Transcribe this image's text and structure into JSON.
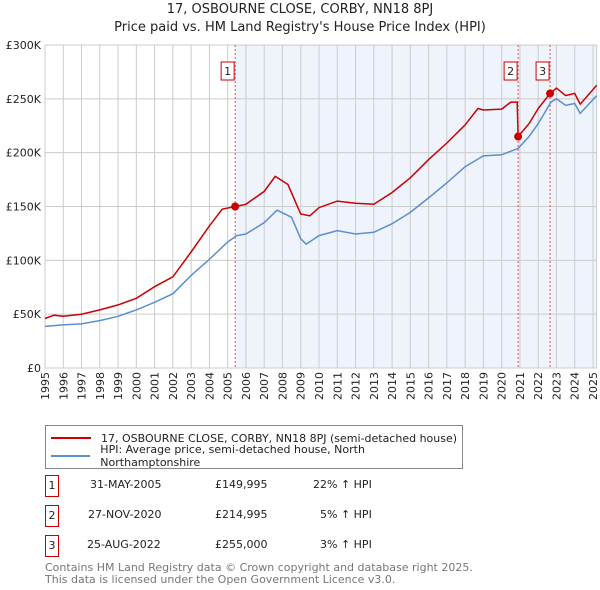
{
  "title": "17, OSBOURNE CLOSE, CORBY, NN18 8PJ",
  "subtitle": "Price paid vs. HM Land Registry's House Price Index (HPI)",
  "legend": {
    "red": "17, OSBOURNE CLOSE, CORBY, NN18 8PJ (semi-detached house)",
    "blue": "HPI: Average price, semi-detached house, North Northamptonshire"
  },
  "sales": [
    {
      "n": "1",
      "date": "31-MAY-2005",
      "price": "£149,995",
      "hpi": "22% ↑ HPI"
    },
    {
      "n": "2",
      "date": "27-NOV-2020",
      "price": "£214,995",
      "hpi": "5% ↑ HPI"
    },
    {
      "n": "3",
      "date": "25-AUG-2022",
      "price": "£255,000",
      "hpi": "3% ↑ HPI"
    }
  ],
  "footer": {
    "line1": "Contains HM Land Registry data © Crown copyright and database right 2025.",
    "line2": "This data is licensed under the Open Government Licence v3.0."
  },
  "colors": {
    "red": "#cc0000",
    "blue": "#5b8fd0",
    "shade": "#eef3fc"
  },
  "chart_data": {
    "type": "line",
    "xlim": [
      1995,
      2025.2
    ],
    "ylim": [
      0,
      300000
    ],
    "yticks": [
      0,
      50000,
      100000,
      150000,
      200000,
      250000,
      300000
    ],
    "ytick_labels": [
      "£0",
      "£50K",
      "£100K",
      "£150K",
      "£200K",
      "£250K",
      "£300K"
    ],
    "xticks": [
      1995,
      1996,
      1997,
      1998,
      1999,
      2000,
      2001,
      2002,
      2003,
      2004,
      2005,
      2006,
      2007,
      2008,
      2009,
      2010,
      2011,
      2012,
      2013,
      2014,
      2015,
      2016,
      2017,
      2018,
      2019,
      2020,
      2021,
      2022,
      2023,
      2024,
      2025
    ],
    "shaded_from": 2005.41,
    "series": [
      {
        "name": "red",
        "x": [
          1995,
          1995.5,
          1996,
          1997,
          1998,
          1999,
          2000,
          2001,
          2002,
          2003,
          2004,
          2004.7,
          2005.41,
          2006,
          2007,
          2007.6,
          2008.3,
          2009,
          2009.5,
          2010,
          2011,
          2012,
          2013,
          2014,
          2015,
          2016,
          2017,
          2018,
          2018.7,
          2019,
          2020,
          2020.5,
          2020.85,
          2020.9,
          2021.5,
          2022,
          2022.65,
          2023,
          2023.5,
          2024,
          2024.3,
          2025.2
        ],
        "y": [
          46000,
          49000,
          48000,
          50000,
          54000,
          58600,
          64700,
          75500,
          84700,
          107700,
          132000,
          147500,
          149995,
          152000,
          164000,
          178000,
          170500,
          143000,
          141400,
          149000,
          155000,
          153000,
          152000,
          163000,
          176700,
          193600,
          209000,
          225800,
          241000,
          239600,
          240500,
          247000,
          247000,
          214995,
          227000,
          241000,
          255000,
          260000,
          253000,
          255000,
          245000,
          262600
        ]
      },
      {
        "name": "blue",
        "x": [
          1995,
          1996,
          1997,
          1998,
          1999,
          2000,
          2001,
          2002,
          2003,
          2004,
          2005,
          2005.5,
          2006,
          2007,
          2007.7,
          2008.5,
          2009,
          2009.3,
          2010,
          2011,
          2012,
          2013,
          2014,
          2015,
          2016,
          2017,
          2018,
          2019,
          2020,
          2020.9,
          2021.5,
          2022,
          2022.7,
          2023,
          2023.5,
          2024,
          2024.3,
          2025.2
        ],
        "y": [
          38600,
          40000,
          41000,
          44000,
          48000,
          54000,
          61000,
          69000,
          86000,
          101000,
          117000,
          123000,
          124500,
          135000,
          146600,
          140000,
          120000,
          115000,
          123000,
          127600,
          124500,
          126000,
          134000,
          144500,
          158000,
          172000,
          187000,
          197000,
          198000,
          204000,
          215000,
          227000,
          247000,
          250000,
          244000,
          245700,
          236500,
          253000
        ]
      }
    ],
    "markers": [
      {
        "label": "1",
        "x": 2005.41,
        "y": 149995
      },
      {
        "label": "2",
        "x": 2020.9,
        "y": 214995
      },
      {
        "label": "3",
        "x": 2022.65,
        "y": 255000
      }
    ]
  }
}
